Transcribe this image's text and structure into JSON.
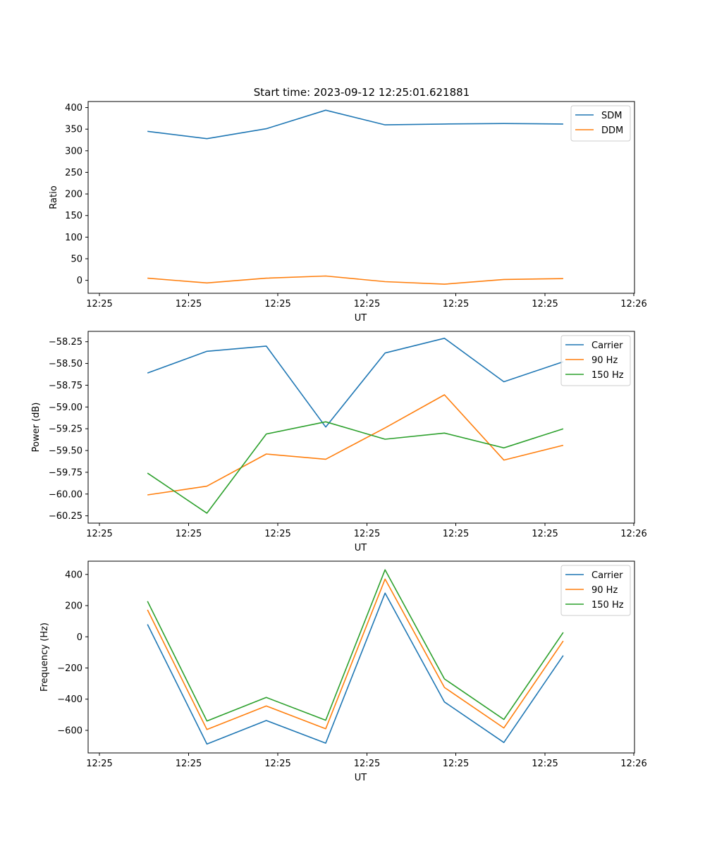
{
  "figure": {
    "title": "Start time: 2023-09-12 12:25:01.621881"
  },
  "colors": {
    "c0": "#1f77b4",
    "c1": "#ff7f0e",
    "c2": "#2ca02c"
  },
  "chart_data": [
    {
      "type": "line",
      "title": "Start time: 2023-09-12 12:25:01.621881",
      "xlabel": "UT",
      "ylabel": "Ratio",
      "xticks": [
        "12:25",
        "12:25",
        "12:25",
        "12:25",
        "12:25",
        "12:25",
        "12:26"
      ],
      "yticks": [
        0,
        50,
        100,
        150,
        200,
        250,
        300,
        350,
        400
      ],
      "ylim": [
        -30,
        414
      ],
      "x": [
        1,
        2,
        3,
        4,
        5,
        6,
        7,
        8
      ],
      "xlim": [
        0,
        9.2
      ],
      "legend": "top-right",
      "series": [
        {
          "name": "SDM",
          "color": "#1f77b4",
          "values": [
            345,
            328,
            351,
            394,
            360,
            362,
            363,
            362
          ]
        },
        {
          "name": "DDM",
          "color": "#ff7f0e",
          "values": [
            5,
            -6,
            5,
            10,
            -3,
            -9,
            2,
            4
          ]
        }
      ]
    },
    {
      "type": "line",
      "title": "",
      "xlabel": "UT",
      "ylabel": "Power (dB)",
      "xticks": [
        "12:25",
        "12:25",
        "12:25",
        "12:25",
        "12:25",
        "12:25",
        "12:26"
      ],
      "yticks": [
        "−60.25",
        "−60.00",
        "−59.75",
        "−59.50",
        "−59.25",
        "−59.00",
        "−58.75",
        "−58.50",
        "−58.25"
      ],
      "ytick_values": [
        -60.25,
        -60.0,
        -59.75,
        -59.5,
        -59.25,
        -59.0,
        -58.75,
        -58.5,
        -58.25
      ],
      "ylim": [
        -60.334,
        -58.131
      ],
      "x": [
        1,
        2,
        3,
        4,
        5,
        6,
        7,
        8
      ],
      "xlim": [
        0,
        9.2
      ],
      "legend": "top-right",
      "series": [
        {
          "name": "Carrier",
          "color": "#1f77b4",
          "values": [
            -58.61,
            -58.36,
            -58.3,
            -59.23,
            -58.38,
            -58.21,
            -58.71,
            -58.48
          ]
        },
        {
          "name": "90 Hz",
          "color": "#ff7f0e",
          "values": [
            -60.01,
            -59.91,
            -59.54,
            -59.6,
            -59.24,
            -58.86,
            -59.61,
            -59.44
          ]
        },
        {
          "name": "150 Hz",
          "color": "#2ca02c",
          "values": [
            -59.76,
            -60.22,
            -59.31,
            -59.17,
            -59.37,
            -59.3,
            -59.47,
            -59.25
          ]
        }
      ]
    },
    {
      "type": "line",
      "title": "",
      "xlabel": "UT",
      "ylabel": "Frequency (Hz)",
      "xticks": [
        "12:25",
        "12:25",
        "12:25",
        "12:25",
        "12:25",
        "12:25",
        "12:26"
      ],
      "yticks": [
        "−600",
        "−400",
        "−200",
        "0",
        "200",
        "400"
      ],
      "ytick_values": [
        -600,
        -400,
        -200,
        0,
        200,
        400
      ],
      "ylim": [
        -745,
        485
      ],
      "x": [
        1,
        2,
        3,
        4,
        5,
        6,
        7,
        8
      ],
      "xlim": [
        0,
        9.2
      ],
      "legend": "top-right",
      "series": [
        {
          "name": "Carrier",
          "color": "#1f77b4",
          "values": [
            80,
            -688,
            -537,
            -682,
            280,
            -418,
            -678,
            -120
          ]
        },
        {
          "name": "90 Hz",
          "color": "#ff7f0e",
          "values": [
            173,
            -595,
            -444,
            -590,
            370,
            -325,
            -585,
            -27
          ]
        },
        {
          "name": "150 Hz",
          "color": "#2ca02c",
          "values": [
            228,
            -540,
            -389,
            -535,
            430,
            -270,
            -530,
            28
          ]
        }
      ]
    }
  ]
}
